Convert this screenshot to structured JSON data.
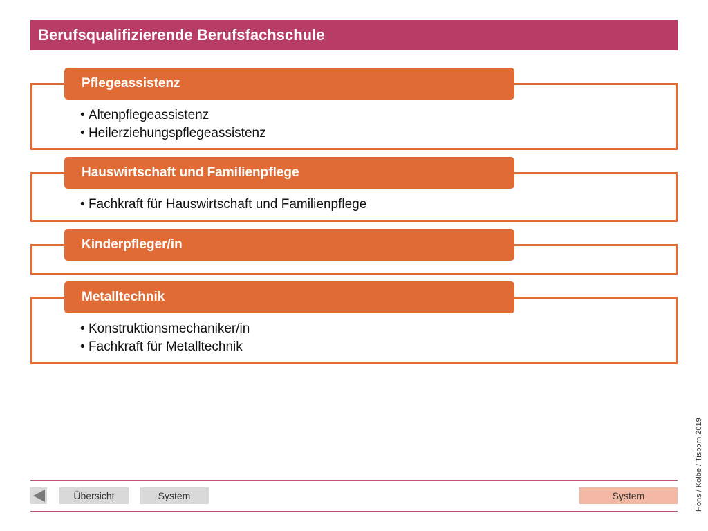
{
  "title": "Berufsqualifizierende Berufsfachschule",
  "sections": [
    {
      "heading": "Pflegeassistenz",
      "items": [
        "Altenpflegeassistenz",
        "Heilerziehungspflegeassistenz"
      ]
    },
    {
      "heading": "Hauswirtschaft und Familienpflege",
      "items": [
        "Fachkraft für Hauswirtschaft und Familienpflege"
      ]
    },
    {
      "heading": "Kinderpfleger/in",
      "items": []
    },
    {
      "heading": "Metalltechnik",
      "items": [
        "Konstruktionsmechaniker/in",
        "Fachkraft für Metalltechnik"
      ]
    }
  ],
  "footer": {
    "back_icon": "triangle-left-icon",
    "overview_label": "Übersicht",
    "system_label": "System",
    "system_right_label": "System",
    "credit": "Hons / Kolbe / Tisborn 2019"
  },
  "colors": {
    "title_bg": "#b83c66",
    "accent_orange": "#e06b35",
    "nav_button_bg": "#d9d9d9",
    "nav_button_active_bg": "#f2b8a4",
    "footer_line": "#c0506f"
  }
}
